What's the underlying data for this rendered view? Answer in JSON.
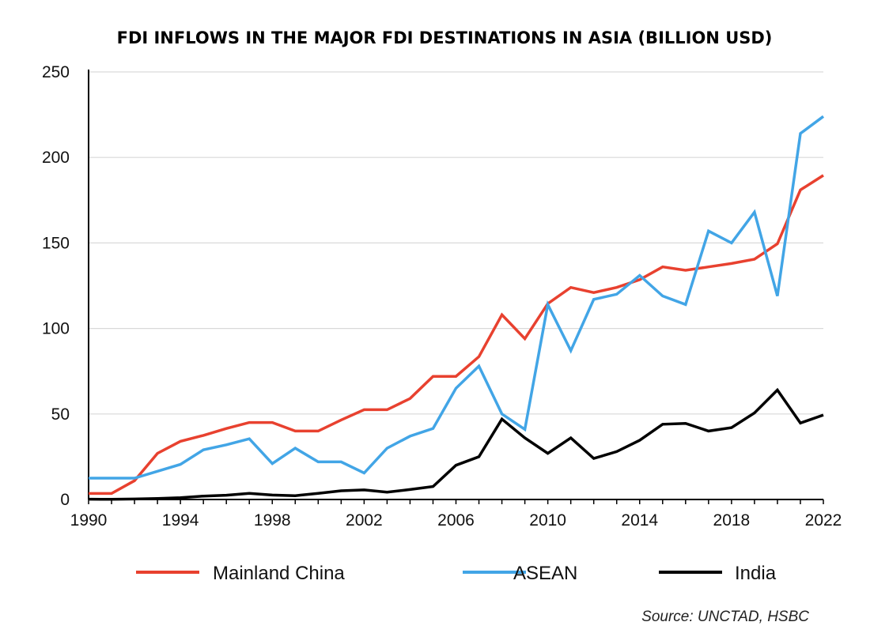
{
  "chart_data": {
    "type": "line",
    "title": "FDI INFLOWS IN THE MAJOR FDI DESTINATIONS IN ASIA (BILLION USD)",
    "xlabel": "",
    "ylabel": "",
    "xlim": [
      1990,
      2022
    ],
    "ylim": [
      0,
      250
    ],
    "x_ticks": [
      "1990",
      "1994",
      "1998",
      "2002",
      "2006",
      "2010",
      "2014",
      "2018",
      "2022"
    ],
    "y_ticks": [
      "0",
      "50",
      "100",
      "150",
      "200",
      "250"
    ],
    "grid": "horizontal",
    "legend_position": "bottom",
    "x": [
      1990,
      1991,
      1992,
      1993,
      1994,
      1995,
      1996,
      1997,
      1998,
      1999,
      2000,
      2001,
      2002,
      2003,
      2004,
      2005,
      2006,
      2007,
      2008,
      2009,
      2010,
      2011,
      2012,
      2013,
      2014,
      2015,
      2016,
      2017,
      2018,
      2019,
      2020,
      2021,
      2022
    ],
    "series": [
      {
        "name": "Mainland China",
        "color": "#e8412f",
        "values": [
          3.5,
          3.5,
          11,
          27,
          34,
          37.5,
          41.5,
          45,
          45,
          40,
          40,
          46.5,
          52.5,
          52.5,
          59,
          72,
          72,
          83.5,
          108,
          94,
          114.5,
          124,
          121,
          124,
          128.5,
          136,
          134,
          136,
          138,
          140.5,
          149.5,
          181,
          189.5
        ]
      },
      {
        "name": "ASEAN",
        "color": "#42a5e6",
        "values": [
          12.5,
          12.5,
          12.5,
          16.5,
          20.5,
          29,
          32,
          35.5,
          21,
          30,
          22,
          22,
          15.5,
          30,
          37,
          41.5,
          65,
          78,
          50,
          41,
          114,
          87,
          117,
          120,
          131,
          119,
          114,
          157,
          150,
          168,
          119,
          214,
          224
        ]
      },
      {
        "name": "India",
        "color": "#000000",
        "values": [
          0.2,
          0.1,
          0.3,
          0.6,
          1,
          2,
          2.5,
          3.6,
          2.6,
          2.2,
          3.6,
          5.1,
          5.6,
          4.3,
          5.8,
          7.6,
          20,
          25,
          47,
          36,
          27,
          36,
          24,
          28,
          34.6,
          44,
          44.5,
          40,
          42,
          50.6,
          64,
          44.7,
          49.4
        ]
      }
    ],
    "source": "Source: UNCTAD, HSBC"
  }
}
